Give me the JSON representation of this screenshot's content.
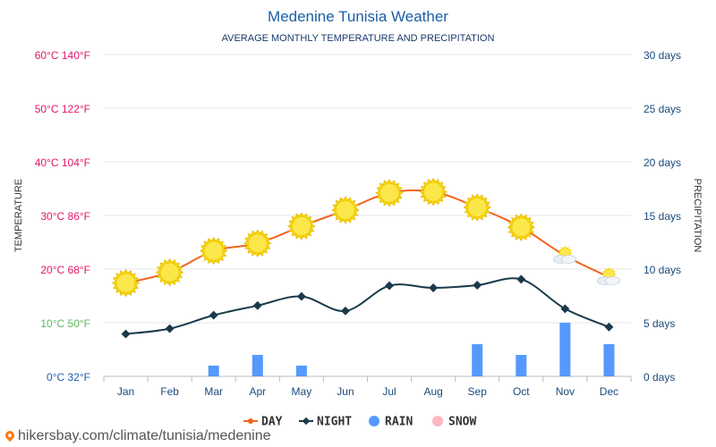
{
  "chart_data": {
    "type": "line",
    "title": "Medenine Tunisia Weather",
    "subtitle": "AVERAGE MONTHLY TEMPERATURE AND PRECIPITATION",
    "ylabel_left": "TEMPERATURE",
    "ylabel_right": "PRECIPITATION",
    "categories": [
      "Jan",
      "Feb",
      "Mar",
      "Apr",
      "May",
      "Jun",
      "Jul",
      "Aug",
      "Sep",
      "Oct",
      "Nov",
      "Dec"
    ],
    "y_left_ticks": [
      {
        "value": 0,
        "label": "0°C 32°F",
        "color": "#1a5fa8"
      },
      {
        "value": 10,
        "label": "10°C 50°F",
        "color": "#5cb85c"
      },
      {
        "value": 20,
        "label": "20°C 68°F",
        "color": "#e0176a"
      },
      {
        "value": 30,
        "label": "30°C 86°F",
        "color": "#e0176a"
      },
      {
        "value": 40,
        "label": "40°C 104°F",
        "color": "#e0176a"
      },
      {
        "value": 50,
        "label": "50°C 122°F",
        "color": "#e0176a"
      },
      {
        "value": 60,
        "label": "60°C 140°F",
        "color": "#e0176a"
      }
    ],
    "y_right_ticks": [
      {
        "value": 0,
        "label": "0 days"
      },
      {
        "value": 5,
        "label": "5 days"
      },
      {
        "value": 10,
        "label": "10 days"
      },
      {
        "value": 15,
        "label": "15 days"
      },
      {
        "value": 20,
        "label": "20 days"
      },
      {
        "value": 25,
        "label": "25 days"
      },
      {
        "value": 30,
        "label": "30 days"
      }
    ],
    "ylim_left": [
      0,
      60
    ],
    "ylim_right": [
      0,
      30
    ],
    "series": [
      {
        "name": "DAY",
        "values": [
          17.4,
          19.4,
          23.4,
          24.8,
          28.0,
          31.0,
          34.2,
          34.4,
          31.5,
          27.8,
          22.5,
          18.5
        ],
        "color": "#f0641e"
      },
      {
        "name": "NIGHT",
        "values": [
          7.9,
          8.9,
          11.4,
          13.2,
          14.9,
          12.2,
          16.9,
          16.5,
          17.0,
          18.1,
          12.6,
          9.2
        ],
        "color": "#1a3a4a"
      },
      {
        "name": "RAIN",
        "values": [
          0,
          0,
          1,
          2,
          1,
          0,
          0,
          0,
          3,
          2,
          5,
          3
        ],
        "color": "#5599ff"
      },
      {
        "name": "SNOW",
        "values": [
          0,
          0,
          0,
          0,
          0,
          0,
          0,
          0,
          0,
          0,
          0,
          0
        ],
        "color": "#ffb6c1"
      }
    ],
    "weather_icons": [
      "sun",
      "sun",
      "sun",
      "sun",
      "sun",
      "sun",
      "sun",
      "sun",
      "sun",
      "sun",
      "partly-cloudy",
      "partly-cloudy"
    ],
    "grid": true,
    "legend_position": "bottom-center"
  },
  "footer": {
    "url": "hikersbay.com/climate/tunisia/medenine"
  }
}
